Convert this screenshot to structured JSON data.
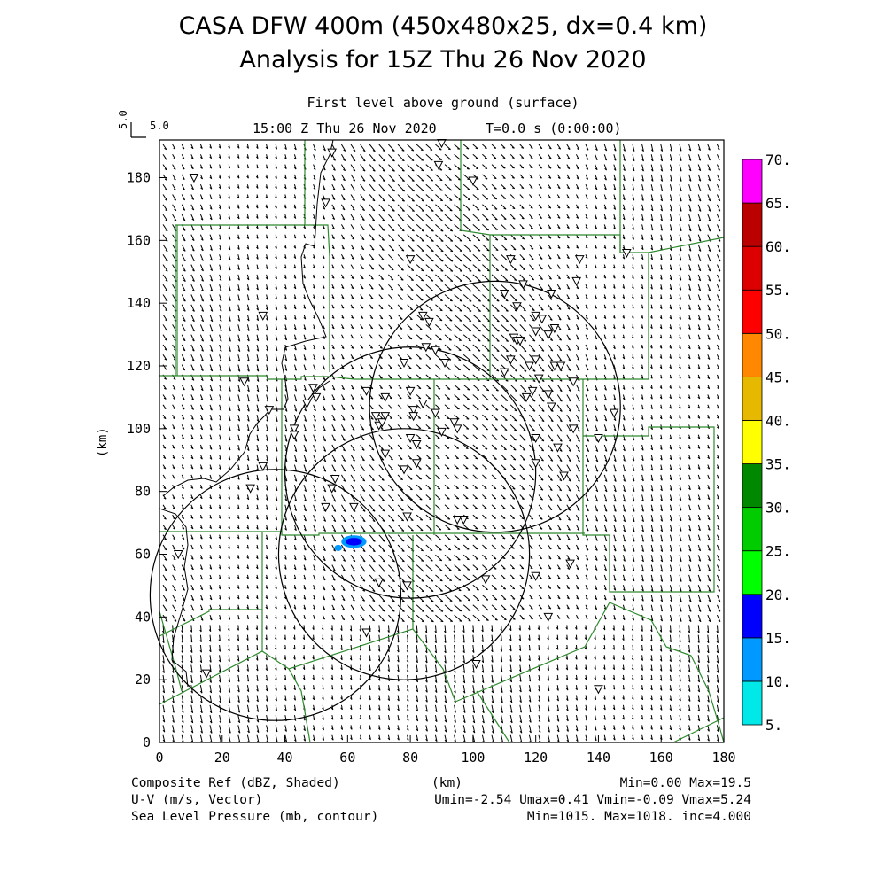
{
  "header": {
    "title_line1": "CASA DFW 400m (450x480x25, dx=0.4 km)",
    "title_line2": "Analysis for 15Z Thu 26 Nov 2020",
    "level": "First level above ground (surface)",
    "valid_time": "15:00 Z Thu 26 Nov 2020",
    "model_time": "T=0.0 s (0:00:00)"
  },
  "reference_vector": {
    "label": "5.0",
    "value": "5.0"
  },
  "axes": {
    "xlabel": "(km)",
    "ylabel": "(km)",
    "x_ticks": [
      "0",
      "20",
      "40",
      "60",
      "80",
      "100",
      "120",
      "140",
      "160",
      "180"
    ],
    "y_ticks": [
      "0",
      "20",
      "40",
      "60",
      "80",
      "100",
      "120",
      "140",
      "160",
      "180"
    ],
    "xlim": [
      0,
      180
    ],
    "ylim": [
      0,
      192
    ]
  },
  "colorbar": {
    "labels": [
      "5.",
      "10.",
      "15.",
      "20.",
      "25.",
      "30.",
      "35.",
      "40.",
      "45.",
      "50.",
      "55.",
      "60.",
      "65.",
      "70."
    ],
    "colors": [
      "#00e8e8",
      "#0099ff",
      "#0000ff",
      "#00ff00",
      "#00cc00",
      "#008800",
      "#ffff00",
      "#e6b800",
      "#ff8800",
      "#ff0000",
      "#dd0000",
      "#bb0000",
      "#ff00ff"
    ]
  },
  "footer": {
    "field1": "Composite Ref (dBZ, Shaded)",
    "field2": "U-V (m/s, Vector)",
    "field3": "Sea Level Pressure (mb, contour)",
    "units": "(km)",
    "ref_minmax": "Min=0.00 Max=19.5",
    "uv_minmax": "Umin=-2.54 Umax=0.41 Vmin=-0.09 Vmax=5.24",
    "slp_minmax": "Min=1015. Max=1018. inc=4.000"
  },
  "colors": {
    "county_lines": "#2e8b2e",
    "vectors": "#000000"
  },
  "map_data": {
    "radar_rings_km": [
      {
        "cx": 107,
        "cy": 107,
        "r": 40
      },
      {
        "cx": 80,
        "cy": 86,
        "r": 40
      },
      {
        "cx": 78,
        "cy": 60,
        "r": 40
      },
      {
        "cx": 37,
        "cy": 47,
        "r": 40
      }
    ],
    "stations_km": [
      [
        90,
        191
      ],
      [
        89,
        184
      ],
      [
        55,
        188
      ],
      [
        100,
        179
      ],
      [
        53,
        172
      ],
      [
        80,
        154
      ],
      [
        134,
        154
      ],
      [
        112,
        154
      ],
      [
        116,
        146
      ],
      [
        125,
        143
      ],
      [
        110,
        143
      ],
      [
        133,
        147
      ],
      [
        114,
        139
      ],
      [
        120,
        136
      ],
      [
        122,
        135
      ],
      [
        84,
        136
      ],
      [
        86,
        134
      ],
      [
        120,
        131
      ],
      [
        124,
        130
      ],
      [
        126,
        132
      ],
      [
        113,
        129
      ],
      [
        114,
        128
      ],
      [
        115,
        128
      ],
      [
        85,
        126
      ],
      [
        88,
        125
      ],
      [
        91,
        121
      ],
      [
        112,
        122
      ],
      [
        120,
        122
      ],
      [
        118,
        120
      ],
      [
        126,
        120
      ],
      [
        128,
        120
      ],
      [
        78,
        121
      ],
      [
        110,
        118
      ],
      [
        121,
        116
      ],
      [
        132,
        115
      ],
      [
        33,
        136
      ],
      [
        27,
        115
      ],
      [
        49,
        113
      ],
      [
        50,
        110
      ],
      [
        47,
        108
      ],
      [
        66,
        112
      ],
      [
        72,
        110
      ],
      [
        80,
        112
      ],
      [
        81,
        106
      ],
      [
        81,
        104
      ],
      [
        84,
        108
      ],
      [
        88,
        105
      ],
      [
        69,
        104
      ],
      [
        70,
        101
      ],
      [
        71,
        102
      ],
      [
        72,
        104
      ],
      [
        117,
        110
      ],
      [
        119,
        112
      ],
      [
        124,
        111
      ],
      [
        125,
        107
      ],
      [
        145,
        105
      ],
      [
        94,
        102
      ],
      [
        95,
        100
      ],
      [
        90,
        99
      ],
      [
        80,
        97
      ],
      [
        82,
        95
      ],
      [
        120,
        97
      ],
      [
        127,
        94
      ],
      [
        132,
        100
      ],
      [
        140,
        97
      ],
      [
        35,
        106
      ],
      [
        43,
        100
      ],
      [
        43,
        98
      ],
      [
        72,
        92
      ],
      [
        78,
        87
      ],
      [
        82,
        89
      ],
      [
        120,
        89
      ],
      [
        129,
        85
      ],
      [
        33,
        88
      ],
      [
        29,
        81
      ],
      [
        56,
        84
      ],
      [
        55,
        81
      ],
      [
        53,
        75
      ],
      [
        62,
        75
      ],
      [
        79,
        72
      ],
      [
        95,
        71
      ],
      [
        97,
        71
      ],
      [
        131,
        57
      ],
      [
        120,
        53
      ],
      [
        104,
        52
      ],
      [
        70,
        51
      ],
      [
        79,
        50
      ],
      [
        6,
        60
      ],
      [
        11,
        180
      ],
      [
        66,
        35
      ],
      [
        15,
        22
      ],
      [
        124,
        40
      ],
      [
        101,
        25
      ],
      [
        140,
        17
      ],
      [
        149,
        156
      ]
    ],
    "echoes_km": [
      {
        "cx": 62,
        "cy": 64,
        "rx": 4,
        "ry": 2,
        "color": "#0099ff"
      },
      {
        "cx": 62,
        "cy": 64,
        "rx": 2.6,
        "ry": 1.2,
        "color": "#0000ff"
      },
      {
        "cx": 57,
        "cy": 62,
        "rx": 1.2,
        "ry": 1,
        "color": "#0099ff"
      }
    ]
  }
}
